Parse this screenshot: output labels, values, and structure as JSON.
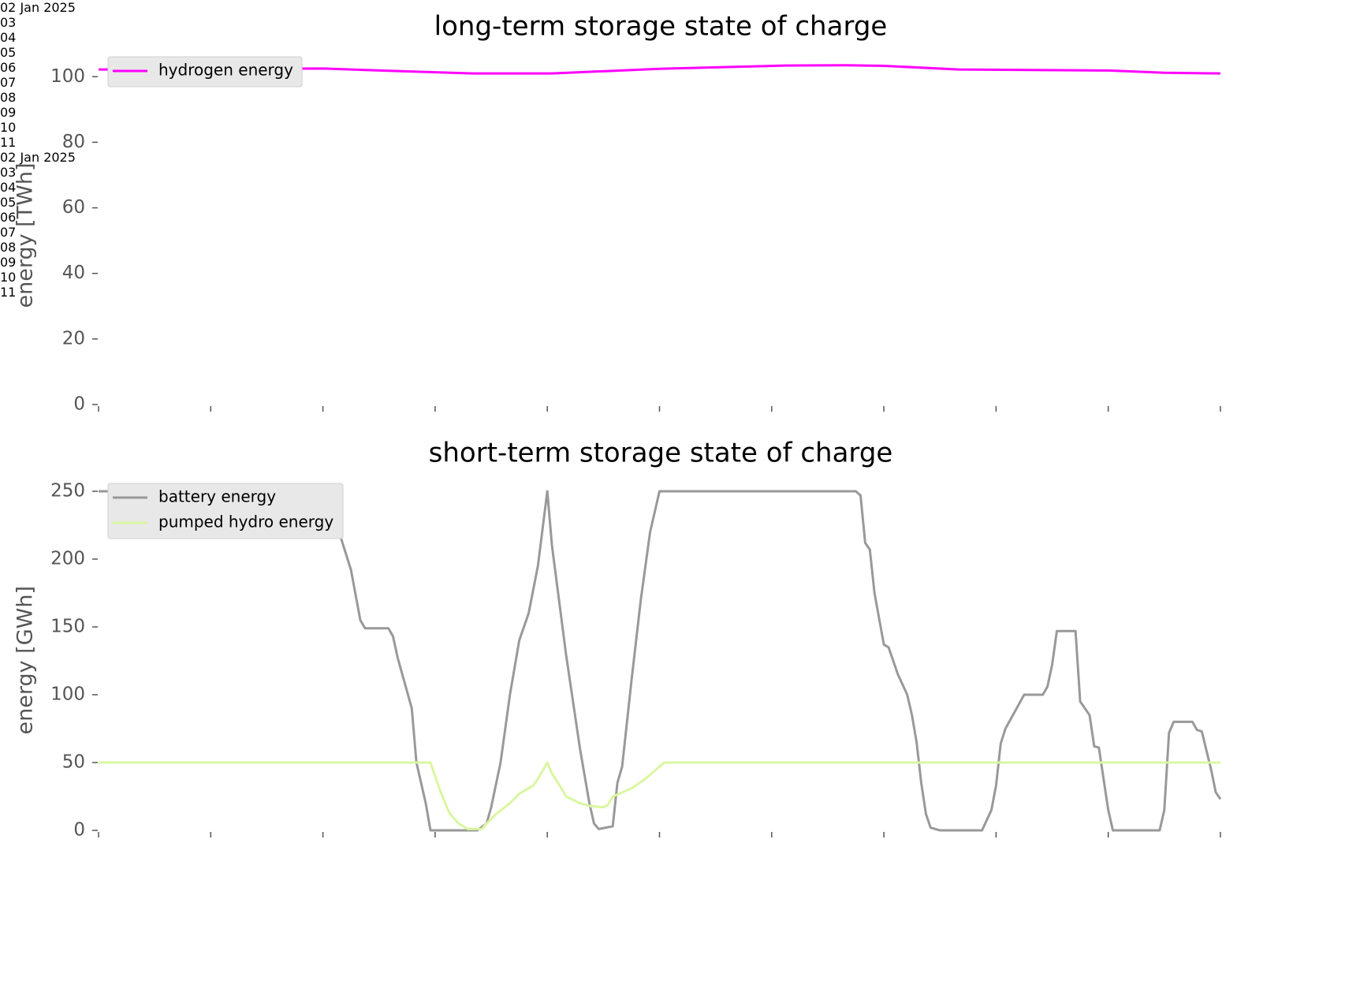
{
  "chart_data": [
    {
      "type": "line",
      "title": "long-term storage state of charge",
      "ylabel": "energy [TWh]",
      "xlim": [
        "2025-01-02 00:00",
        "2025-01-12 00:00"
      ],
      "xticks": [
        {
          "value": "2025-01-02 00:00",
          "label": "02\nJan\n2025"
        },
        {
          "value": "2025-01-03 00:00",
          "label": "03"
        },
        {
          "value": "2025-01-04 00:00",
          "label": "04"
        },
        {
          "value": "2025-01-05 00:00",
          "label": "05"
        },
        {
          "value": "2025-01-06 00:00",
          "label": "06"
        },
        {
          "value": "2025-01-07 00:00",
          "label": "07"
        },
        {
          "value": "2025-01-08 00:00",
          "label": "08"
        },
        {
          "value": "2025-01-09 00:00",
          "label": "09"
        },
        {
          "value": "2025-01-10 00:00",
          "label": "10"
        },
        {
          "value": "2025-01-11 00:00",
          "label": "11"
        }
      ],
      "ylim": [
        0,
        108
      ],
      "yticks": [
        0,
        20,
        40,
        60,
        80,
        100
      ],
      "legend": "upper left",
      "grid": false,
      "series": [
        {
          "name": "hydrogen energy",
          "color": "#ff00ff",
          "x": [
            "2025-01-02 00:00",
            "2025-01-04 00:00",
            "2025-01-04 14:00",
            "2025-01-05 08:00",
            "2025-01-06 01:00",
            "2025-01-07 00:00",
            "2025-01-08 03:00",
            "2025-01-08 16:00",
            "2025-01-09 00:00",
            "2025-01-09 16:00",
            "2025-01-11 00:00",
            "2025-01-11 12:00",
            "2025-01-12 00:00"
          ],
          "values": [
            102.2,
            102.5,
            101.8,
            101.0,
            101.0,
            102.4,
            103.4,
            103.5,
            103.3,
            102.2,
            101.9,
            101.2,
            101.0
          ]
        }
      ]
    },
    {
      "type": "line",
      "title": "short-term storage state of charge",
      "ylabel": "energy [GWh]",
      "xlim": [
        "2025-01-02 00:00",
        "2025-01-12 00:00"
      ],
      "xticks": [
        {
          "value": "2025-01-02 00:00",
          "label": "02\nJan\n2025"
        },
        {
          "value": "2025-01-03 00:00",
          "label": "03"
        },
        {
          "value": "2025-01-04 00:00",
          "label": "04"
        },
        {
          "value": "2025-01-05 00:00",
          "label": "05"
        },
        {
          "value": "2025-01-06 00:00",
          "label": "06"
        },
        {
          "value": "2025-01-07 00:00",
          "label": "07"
        },
        {
          "value": "2025-01-08 00:00",
          "label": "08"
        },
        {
          "value": "2025-01-09 00:00",
          "label": "09"
        },
        {
          "value": "2025-01-10 00:00",
          "label": "10"
        },
        {
          "value": "2025-01-11 00:00",
          "label": "11"
        }
      ],
      "ylim": [
        0,
        262.5
      ],
      "yticks": [
        0,
        50,
        100,
        150,
        200,
        250
      ],
      "legend": "upper left",
      "grid": false,
      "series": [
        {
          "name": "battery energy",
          "color": "#999999",
          "x": [
            "2025-01-02 00:00",
            "2025-01-04 01:00",
            "2025-01-04 02:00",
            "2025-01-04 03:00",
            "2025-01-04 06:00",
            "2025-01-04 08:00",
            "2025-01-04 09:00",
            "2025-01-04 14:00",
            "2025-01-04 15:00",
            "2025-01-04 16:00",
            "2025-01-04 19:00",
            "2025-01-04 20:00",
            "2025-01-04 22:00",
            "2025-01-04 23:00",
            "2025-01-05 09:00",
            "2025-01-05 11:00",
            "2025-01-05 12:00",
            "2025-01-05 14:00",
            "2025-01-05 16:00",
            "2025-01-05 18:00",
            "2025-01-05 20:00",
            "2025-01-05 22:00",
            "2025-01-06 00:00",
            "2025-01-06 01:00",
            "2025-01-06 04:00",
            "2025-01-06 07:00",
            "2025-01-06 09:00",
            "2025-01-06 10:00",
            "2025-01-06 11:00",
            "2025-01-06 14:00",
            "2025-01-06 15:00",
            "2025-01-06 16:00",
            "2025-01-06 18:00",
            "2025-01-06 20:00",
            "2025-01-06 22:00",
            "2025-01-07 00:00",
            "2025-01-08 18:00",
            "2025-01-08 19:00",
            "2025-01-08 20:00",
            "2025-01-08 21:00",
            "2025-01-08 22:00",
            "2025-01-09 00:00",
            "2025-01-09 01:00",
            "2025-01-09 03:00",
            "2025-01-09 05:00",
            "2025-01-09 06:00",
            "2025-01-09 07:00",
            "2025-01-09 08:00",
            "2025-01-09 09:00",
            "2025-01-09 10:00",
            "2025-01-09 12:00",
            "2025-01-09 21:00",
            "2025-01-09 23:00",
            "2025-01-10 00:00",
            "2025-01-10 01:00",
            "2025-01-10 02:00",
            "2025-01-10 06:00",
            "2025-01-10 10:00",
            "2025-01-10 11:00",
            "2025-01-10 12:00",
            "2025-01-10 13:00",
            "2025-01-10 17:00",
            "2025-01-10 18:00",
            "2025-01-10 20:00",
            "2025-01-10 21:00",
            "2025-01-10 22:00",
            "2025-01-11 00:00",
            "2025-01-11 01:00",
            "2025-01-11 11:00",
            "2025-01-11 12:00",
            "2025-01-11 13:00",
            "2025-01-11 14:00",
            "2025-01-11 18:00",
            "2025-01-11 19:00",
            "2025-01-11 20:00",
            "2025-01-11 22:00",
            "2025-01-11 23:00",
            "2025-01-12 00:00"
          ],
          "values": [
            250,
            250,
            235,
            225,
            192,
            155,
            149,
            149,
            143,
            127,
            90,
            50,
            20,
            0,
            0,
            5,
            17,
            50,
            100,
            140,
            160,
            195,
            250,
            210,
            130,
            60,
            20,
            5,
            1,
            3,
            35,
            47,
            110,
            170,
            220,
            250,
            250,
            247,
            212,
            207,
            175,
            137,
            135,
            115,
            100,
            85,
            65,
            35,
            12,
            2,
            0,
            0,
            15,
            33,
            64,
            75,
            100,
            100,
            106,
            122,
            147,
            147,
            95,
            85,
            62,
            61,
            15,
            0,
            0,
            15,
            72,
            80,
            80,
            74,
            73,
            45,
            28,
            23
          ]
        },
        {
          "name": "pumped hydro energy",
          "color": "#d9f7a0",
          "x": [
            "2025-01-02 00:00",
            "2025-01-04 23:00",
            "2025-01-05 01:00",
            "2025-01-05 03:00",
            "2025-01-05 05:00",
            "2025-01-05 07:00",
            "2025-01-05 10:00",
            "2025-01-05 11:00",
            "2025-01-05 13:00",
            "2025-01-05 16:00",
            "2025-01-05 18:00",
            "2025-01-05 21:00",
            "2025-01-05 22:00",
            "2025-01-06 00:00",
            "2025-01-06 01:00",
            "2025-01-06 03:00",
            "2025-01-06 04:00",
            "2025-01-06 07:00",
            "2025-01-06 09:00",
            "2025-01-06 12:00",
            "2025-01-06 13:00",
            "2025-01-06 14:00",
            "2025-01-06 18:00",
            "2025-01-06 21:00",
            "2025-01-07 01:00",
            "2025-01-12 00:00"
          ],
          "values": [
            50,
            50,
            30,
            13,
            5,
            1,
            1,
            5,
            12,
            20,
            27,
            33,
            38,
            50,
            42,
            31,
            25,
            20,
            18,
            17,
            19,
            25,
            31,
            38,
            50,
            50
          ]
        }
      ]
    }
  ]
}
